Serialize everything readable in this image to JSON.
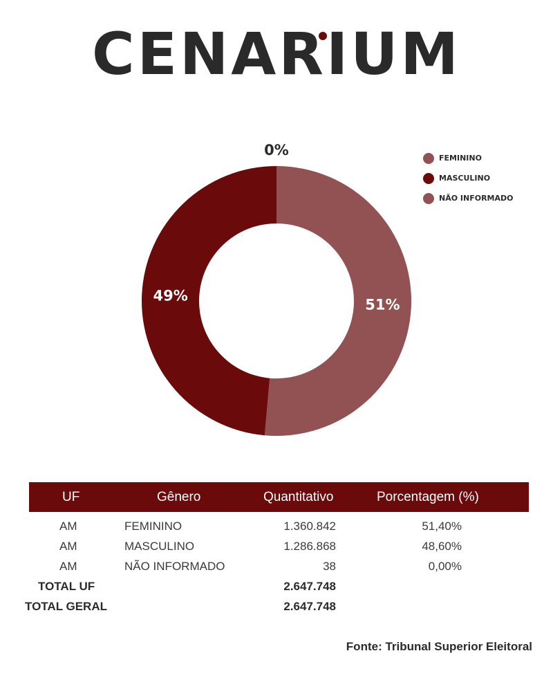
{
  "brand": {
    "logo_text": "CENARIUM",
    "accent": "#6b0a0a"
  },
  "chart_data": {
    "type": "pie",
    "variant": "donut",
    "categories": [
      "FEMININO",
      "MASCULINO",
      "NÃO INFORMADO"
    ],
    "values": [
      51.4,
      48.6,
      0.0
    ],
    "slice_labels": [
      "51%",
      "49%",
      "0%"
    ],
    "colors": [
      "#925152",
      "#6b0a0a",
      "#925152"
    ],
    "legend": {
      "placement": "top-right",
      "items": [
        {
          "label": "FEMININO",
          "color": "#925152"
        },
        {
          "label": "MASCULINO",
          "color": "#6b0a0a"
        },
        {
          "label": "NÃO INFORMADO",
          "color": "#925152"
        }
      ]
    }
  },
  "table": {
    "headers": [
      "UF",
      "Gênero",
      "Quantitativo",
      "Porcentagem (%)"
    ],
    "rows": [
      {
        "uf": "AM",
        "genero": "FEMININO",
        "quantitativo": "1.360.842",
        "porcentagem": "51,40%"
      },
      {
        "uf": "AM",
        "genero": "MASCULINO",
        "quantitativo": "1.286.868",
        "porcentagem": "48,60%"
      },
      {
        "uf": "AM",
        "genero": "NÃO INFORMADO",
        "quantitativo": "38",
        "porcentagem": "0,00%"
      }
    ],
    "totals": [
      {
        "label": "TOTAL UF",
        "value": "2.647.748"
      },
      {
        "label": "TOTAL GERAL",
        "value": "2.647.748"
      }
    ]
  },
  "source": "Fonte: Tribunal Superior Eleitoral"
}
